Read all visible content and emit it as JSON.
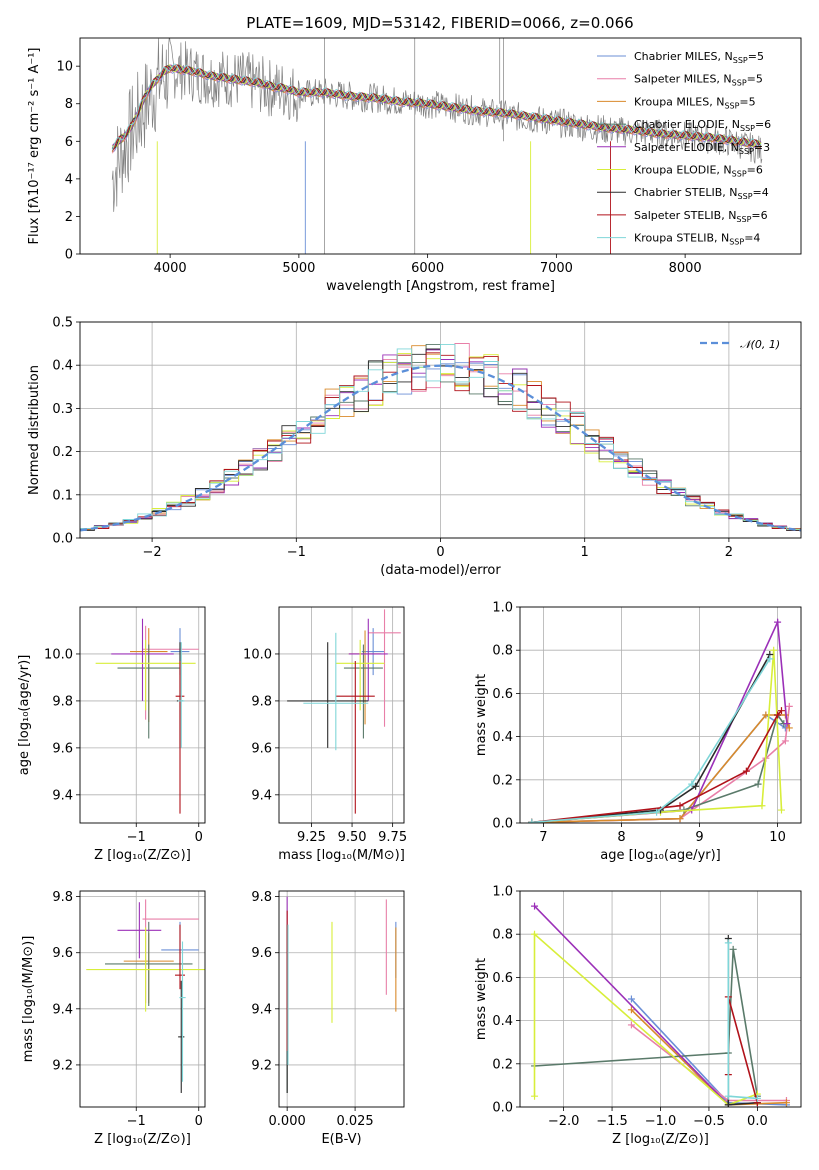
{
  "figure": {
    "title": "PLATE=1609, MJD=53142, FIBERID=0066, z=0.066"
  },
  "colors": {
    "Chabrier MILES": "#6b8fd6",
    "Salpeter MILES": "#e87fa8",
    "Kroupa MILES": "#d98a2b",
    "Chabrier ELODIE": "#5a7a6a",
    "Salpeter ELODIE": "#9b30b8",
    "Kroupa ELODIE": "#d8ee3a",
    "Chabrier STELIB": "#2b2b2b",
    "Salpeter STELIB": "#b0121a",
    "Kroupa STELIB": "#7fd6d8",
    "data": "#808080",
    "normal": "#5b8fd9",
    "grid": "#b0b0b0"
  },
  "chart_data": [
    {
      "id": "spectrum",
      "type": "line",
      "xlabel": "wavelength [Angstrom, rest frame]",
      "ylabel": "Flux [fλ10⁻¹⁷ erg cm⁻² s⁻¹ A⁻¹]",
      "xlim": [
        3300,
        8900
      ],
      "ylim": [
        0,
        11.5
      ],
      "xticks": [
        4000,
        5000,
        6000,
        7000,
        8000
      ],
      "yticks": [
        0,
        2,
        4,
        6,
        8,
        10
      ],
      "grid": false,
      "legend_position": "upper-right",
      "data_x": [
        3550,
        3600,
        3650,
        3700,
        3750,
        3800,
        3850,
        3900,
        3950,
        4000,
        4100,
        4200,
        4300,
        4400,
        4500,
        4600,
        4700,
        4800,
        4900,
        5000,
        5200,
        5400,
        5600,
        5800,
        6000,
        6200,
        6400,
        6600,
        6800,
        7000,
        7200,
        7400,
        7600,
        7800,
        8000,
        8200,
        8400,
        8600
      ],
      "data_y": [
        4.0,
        5.0,
        5.8,
        6.5,
        7.2,
        7.8,
        8.5,
        9.0,
        9.5,
        9.8,
        9.8,
        9.6,
        9.4,
        9.4,
        9.3,
        9.2,
        9.0,
        8.8,
        8.7,
        8.5,
        8.6,
        8.4,
        8.3,
        8.1,
        8.0,
        7.8,
        7.6,
        7.4,
        7.2,
        7.0,
        6.8,
        6.6,
        6.5,
        6.4,
        6.3,
        6.1,
        5.9,
        5.5
      ],
      "model_x": [
        3550,
        3600,
        3650,
        3700,
        3750,
        3800,
        3850,
        3900,
        3950,
        4000,
        4100,
        4200,
        4300,
        4400,
        4500,
        4600,
        4700,
        4800,
        4900,
        5000,
        5200,
        5400,
        5600,
        5800,
        6000,
        6200,
        6400,
        6600,
        6800,
        7000,
        7200,
        7400,
        7600,
        7800,
        8000,
        8200,
        8400,
        8600
      ],
      "model_y": [
        5.6,
        6.0,
        6.3,
        6.8,
        7.5,
        8.3,
        8.9,
        9.3,
        9.7,
        9.9,
        9.8,
        9.7,
        9.5,
        9.4,
        9.3,
        9.2,
        9.1,
        8.9,
        8.8,
        8.6,
        8.6,
        8.4,
        8.3,
        8.1,
        8.0,
        7.8,
        7.6,
        7.5,
        7.3,
        7.1,
        6.9,
        6.7,
        6.6,
        6.4,
        6.3,
        6.2,
        6.0,
        5.8
      ],
      "legend": [
        {
          "name": "Chabrier MILES, N",
          "sub": "SSP",
          "tail": "=5"
        },
        {
          "name": "Salpeter MILES, N",
          "sub": "SSP",
          "tail": "=5"
        },
        {
          "name": "Kroupa MILES, N",
          "sub": "SSP",
          "tail": "=5"
        },
        {
          "name": "Chabrier ELODIE, N",
          "sub": "SSP",
          "tail": "=6"
        },
        {
          "name": "Salpeter ELODIE, N",
          "sub": "SSP",
          "tail": "=3"
        },
        {
          "name": "Kroupa ELODIE, N",
          "sub": "SSP",
          "tail": "=6"
        },
        {
          "name": "Chabrier STELIB, N",
          "sub": "SSP",
          "tail": "=4"
        },
        {
          "name": "Salpeter STELIB, N",
          "sub": "SSP",
          "tail": "=6"
        },
        {
          "name": "Kroupa STELIB, N",
          "sub": "SSP",
          "tail": "=4"
        }
      ]
    },
    {
      "id": "residuals",
      "type": "bar",
      "xlabel": "(data-model)/error",
      "ylabel": "Normed distribution",
      "xlim": [
        -2.5,
        2.5
      ],
      "ylim": [
        0,
        0.5
      ],
      "xticks": [
        -2,
        -1,
        0,
        1,
        2
      ],
      "xtick_labels": [
        "−2",
        "−1",
        "0",
        "1",
        "2"
      ],
      "yticks": [
        0.0,
        0.1,
        0.2,
        0.3,
        0.4,
        0.5
      ],
      "ytick_labels": [
        "0.0",
        "0.1",
        "0.2",
        "0.3",
        "0.4",
        "0.5"
      ],
      "grid": true,
      "bin_width": 0.1,
      "legend": {
        "label": "𝒩(0, 1)"
      }
    },
    {
      "id": "age_vs_Z",
      "type": "scatter",
      "xlabel": "Z [log₁₀(Z/Z⊙)]",
      "ylabel": "age  [log₁₀(age/yr)]",
      "xlim": [
        -1.9,
        0.1
      ],
      "ylim": [
        9.28,
        10.2
      ],
      "xticks": [
        -1,
        0
      ],
      "xtick_labels": [
        "−1",
        "0"
      ],
      "yticks": [
        9.4,
        9.6,
        9.8,
        10.0
      ],
      "ytick_labels": [
        "9.4",
        "9.6",
        "9.8",
        "10.0"
      ],
      "grid": true,
      "points": [
        {
          "model": "Chabrier MILES",
          "x": -0.3,
          "y": 10.01,
          "xerr": 0.15,
          "yerr": [
            0.1,
            0.1
          ]
        },
        {
          "model": "Salpeter MILES",
          "x": -0.85,
          "y": 10.02,
          "xerr": [
            0.05,
            0.85
          ],
          "yerr": [
            0.3,
            0.1
          ]
        },
        {
          "model": "Kroupa MILES",
          "x": -0.8,
          "y": 10.01,
          "xerr": 0.3,
          "yerr": [
            0.3,
            0.1
          ]
        },
        {
          "model": "Chabrier ELODIE",
          "x": -0.8,
          "y": 9.94,
          "xerr": 0.5,
          "yerr": [
            0.3,
            0.1
          ]
        },
        {
          "model": "Salpeter ELODIE",
          "x": -0.9,
          "y": 10.0,
          "xerr": 0.5,
          "yerr": [
            0.2,
            0.15
          ]
        },
        {
          "model": "Kroupa ELODIE",
          "x": -0.85,
          "y": 9.96,
          "xerr": 0.8,
          "yerr": [
            0.2,
            0.1
          ]
        },
        {
          "model": "Chabrier STELIB",
          "x": -0.3,
          "y": 9.8,
          "xerr": 0.05,
          "yerr": [
            0.2,
            0.25
          ]
        },
        {
          "model": "Salpeter STELIB",
          "x": -0.3,
          "y": 9.82,
          "xerr": 0.07,
          "yerr": [
            0.5,
            0.15
          ]
        },
        {
          "model": "Kroupa STELIB",
          "x": -0.28,
          "y": 9.8,
          "xerr": 0.05,
          "yerr": [
            0.2,
            0.25
          ]
        }
      ]
    },
    {
      "id": "age_vs_mass",
      "type": "scatter",
      "xlabel": "mass [log₁₀(M/M⊙)]",
      "ylabel": "",
      "xlim": [
        9.05,
        9.82
      ],
      "ylim": [
        9.28,
        10.2
      ],
      "xticks": [
        9.25,
        9.5,
        9.75
      ],
      "xtick_labels": [
        "9.25",
        "9.50",
        "9.75"
      ],
      "yticks": [
        9.4,
        9.6,
        9.8,
        10.0
      ],
      "ytick_labels": [
        "9.4",
        "9.6",
        "9.8",
        "10.0"
      ],
      "grid": true,
      "points": [
        {
          "model": "Chabrier MILES",
          "x": 9.63,
          "y": 10.01,
          "xerr": 0.07,
          "yerr": [
            0.1,
            0.1
          ]
        },
        {
          "model": "Salpeter MILES",
          "x": 9.7,
          "y": 10.09,
          "xerr": 0.1,
          "yerr": [
            0.4,
            0.1
          ]
        },
        {
          "model": "Kroupa MILES",
          "x": 9.58,
          "y": 10.0,
          "xerr": 0.1,
          "yerr": [
            0.3,
            0.1
          ]
        },
        {
          "model": "Chabrier ELODIE",
          "x": 9.57,
          "y": 9.94,
          "xerr": 0.12,
          "yerr": [
            0.3,
            0.1
          ]
        },
        {
          "model": "Salpeter ELODIE",
          "x": 9.6,
          "y": 10.0,
          "xerr": 0.12,
          "yerr": [
            0.2,
            0.15
          ]
        },
        {
          "model": "Kroupa ELODIE",
          "x": 9.55,
          "y": 9.96,
          "xerr": 0.15,
          "yerr": [
            0.2,
            0.1
          ]
        },
        {
          "model": "Chabrier STELIB",
          "x": 9.35,
          "y": 9.8,
          "xerr": 0.25,
          "yerr": [
            0.2,
            0.25
          ]
        },
        {
          "model": "Salpeter STELIB",
          "x": 9.52,
          "y": 9.82,
          "xerr": 0.12,
          "yerr": [
            0.5,
            0.15
          ]
        },
        {
          "model": "Kroupa STELIB",
          "x": 9.4,
          "y": 9.79,
          "xerr": 0.2,
          "yerr": [
            0.2,
            0.3
          ]
        }
      ]
    },
    {
      "id": "weight_vs_age",
      "type": "line",
      "xlabel": "age  [log₁₀(age/yr)]",
      "ylabel": "mass weight",
      "xlim": [
        6.7,
        10.3
      ],
      "ylim": [
        0,
        1.0
      ],
      "xticks": [
        7,
        8,
        9,
        10
      ],
      "xtick_labels": [
        "7",
        "8",
        "9",
        "10"
      ],
      "yticks": [
        0.0,
        0.2,
        0.4,
        0.6,
        0.8,
        1.0
      ],
      "ytick_labels": [
        "0.0",
        "0.2",
        "0.4",
        "0.6",
        "0.8",
        "1.0"
      ],
      "grid": true,
      "series": [
        {
          "model": "Chabrier MILES",
          "x": [
            6.85,
            8.75,
            9.85,
            10.1
          ],
          "y": [
            0.003,
            0.02,
            0.5,
            0.44
          ]
        },
        {
          "model": "Salpeter MILES",
          "x": [
            6.85,
            8.75,
            9.85,
            10.1,
            10.15
          ],
          "y": [
            0.003,
            0.02,
            0.3,
            0.38,
            0.54
          ]
        },
        {
          "model": "Kroupa MILES",
          "x": [
            6.85,
            8.75,
            9.85,
            10.1,
            10.15
          ],
          "y": [
            0.003,
            0.02,
            0.5,
            0.5,
            0.44
          ]
        },
        {
          "model": "Chabrier ELODIE",
          "x": [
            6.85,
            8.8,
            9.75,
            10.0,
            10.08
          ],
          "y": [
            0.003,
            0.06,
            0.18,
            0.5,
            0.46
          ]
        },
        {
          "model": "Salpeter ELODIE",
          "x": [
            6.85,
            8.9,
            10.0,
            10.12
          ],
          "y": [
            0.003,
            0.06,
            0.93,
            0.46
          ]
        },
        {
          "model": "Kroupa ELODIE",
          "x": [
            6.85,
            8.5,
            9.8,
            9.95,
            10.05
          ],
          "y": [
            0.003,
            0.05,
            0.08,
            0.8,
            0.06
          ]
        },
        {
          "model": "Chabrier STELIB",
          "x": [
            6.85,
            8.5,
            8.95,
            9.9
          ],
          "y": [
            0.003,
            0.06,
            0.17,
            0.78
          ]
        },
        {
          "model": "Salpeter STELIB",
          "x": [
            6.85,
            8.75,
            9.6,
            10.0,
            10.05
          ],
          "y": [
            0.003,
            0.08,
            0.24,
            0.5,
            0.52
          ]
        },
        {
          "model": "Kroupa STELIB",
          "x": [
            6.85,
            8.45,
            8.9,
            9.9
          ],
          "y": [
            0.003,
            0.05,
            0.18,
            0.76
          ]
        }
      ]
    },
    {
      "id": "mass_vs_Z",
      "type": "scatter",
      "xlabel": "Z [log₁₀(Z/Z⊙)]",
      "ylabel": "mass [log₁₀(M/M⊙)]",
      "xlim": [
        -1.9,
        0.1
      ],
      "ylim": [
        9.05,
        9.82
      ],
      "xticks": [
        -1,
        0
      ],
      "xtick_labels": [
        "−1",
        "0"
      ],
      "yticks": [
        9.2,
        9.4,
        9.6,
        9.8
      ],
      "ytick_labels": [
        "9.2",
        "9.4",
        "9.6",
        "9.8"
      ],
      "grid": true,
      "points": [
        {
          "model": "Chabrier MILES",
          "x": -0.3,
          "y": 9.61,
          "xerr": 0.3,
          "yerr": 0.1
        },
        {
          "model": "Salpeter MILES",
          "x": -0.85,
          "y": 9.72,
          "xerr": [
            0.05,
            0.85
          ],
          "yerr": [
            0.3,
            0.07
          ]
        },
        {
          "model": "Kroupa MILES",
          "x": -0.8,
          "y": 9.57,
          "xerr": 0.4,
          "yerr": [
            0.15,
            0.1
          ]
        },
        {
          "model": "Chabrier ELODIE",
          "x": -0.8,
          "y": 9.56,
          "xerr": 0.7,
          "yerr": 0.15
        },
        {
          "model": "Salpeter ELODIE",
          "x": -0.95,
          "y": 9.68,
          "xerr": 0.35,
          "yerr": 0.1
        },
        {
          "model": "Kroupa ELODIE",
          "x": -0.85,
          "y": 9.54,
          "xerr": 0.95,
          "yerr": 0.15
        },
        {
          "model": "Chabrier STELIB",
          "x": -0.28,
          "y": 9.3,
          "xerr": 0.05,
          "yerr": 0.2
        },
        {
          "model": "Salpeter STELIB",
          "x": -0.3,
          "y": 9.52,
          "xerr": 0.08,
          "yerr": [
            0.05,
            0.18
          ]
        },
        {
          "model": "Kroupa STELIB",
          "x": -0.26,
          "y": 9.44,
          "xerr": 0.05,
          "yerr": [
            0.3,
            0.2
          ]
        }
      ]
    },
    {
      "id": "mass_vs_ebv",
      "type": "scatter",
      "xlabel": "E(B-V)",
      "ylabel": "",
      "xlim": [
        -0.003,
        0.043
      ],
      "ylim": [
        9.05,
        9.82
      ],
      "xticks": [
        0.0,
        0.025
      ],
      "xtick_labels": [
        "0.000",
        "0.025"
      ],
      "yticks": [
        9.2,
        9.4,
        9.6,
        9.8
      ],
      "ytick_labels": [
        "9.2",
        "9.4",
        "9.6",
        "9.8"
      ],
      "grid": true,
      "points": [
        {
          "model": "Chabrier MILES",
          "x": 0.04,
          "y": 9.61,
          "xerr": 0,
          "yerr": 0.1
        },
        {
          "model": "Salpeter MILES",
          "x": 0.0365,
          "y": 9.62,
          "xerr": 0,
          "yerr": 0.17
        },
        {
          "model": "Kroupa MILES",
          "x": 0.04,
          "y": 9.54,
          "xerr": 0,
          "yerr": 0.15
        },
        {
          "model": "Chabrier ELODIE",
          "x": 0.0,
          "y": 9.3,
          "xerr": 0,
          "yerr": 0.2
        },
        {
          "model": "Salpeter ELODIE",
          "x": 0.0,
          "y": 9.6,
          "xerr": 0,
          "yerr": 0.2
        },
        {
          "model": "Kroupa ELODIE",
          "x": 0.0165,
          "y": 9.53,
          "xerr": 0,
          "yerr": 0.18
        },
        {
          "model": "Chabrier STELIB",
          "x": 0.0,
          "y": 9.4,
          "xerr": 0,
          "yerr": 0.3
        },
        {
          "model": "Salpeter STELIB",
          "x": 0.0,
          "y": 9.5,
          "xerr": 0,
          "yerr": 0.25
        },
        {
          "model": "Kroupa STELIB",
          "x": 0.0003,
          "y": 9.45,
          "xerr": 0,
          "yerr": 0.25
        }
      ]
    },
    {
      "id": "weight_vs_Z",
      "type": "line",
      "xlabel": "Z [log₁₀(Z/Z⊙)]",
      "ylabel": "mass weight",
      "xlim": [
        -2.45,
        0.45
      ],
      "ylim": [
        0,
        1.0
      ],
      "xticks": [
        -2.0,
        -1.5,
        -1.0,
        -0.5,
        0.0
      ],
      "xtick_labels": [
        "−2.0",
        "−1.5",
        "−1.0",
        "−0.5",
        "0.0"
      ],
      "yticks": [
        0.0,
        0.2,
        0.4,
        0.6,
        0.8,
        1.0
      ],
      "ytick_labels": [
        "0.0",
        "0.2",
        "0.4",
        "0.6",
        "0.8",
        "1.0"
      ],
      "grid": true,
      "series": [
        {
          "model": "Chabrier MILES",
          "x": [
            -1.3,
            -0.3,
            0.3
          ],
          "y": [
            0.5,
            0.02,
            0.01
          ]
        },
        {
          "model": "Salpeter MILES",
          "x": [
            -1.3,
            -0.3,
            0.3
          ],
          "y": [
            0.38,
            0.03,
            0.03
          ]
        },
        {
          "model": "Kroupa MILES",
          "x": [
            -1.3,
            -0.3,
            0.3
          ],
          "y": [
            0.45,
            0.01,
            0.02
          ]
        },
        {
          "model": "Chabrier ELODIE",
          "x": [
            -2.3,
            -0.3,
            -0.25,
            0.0
          ],
          "y": [
            0.19,
            0.25,
            0.73,
            0.05
          ]
        },
        {
          "model": "Salpeter ELODIE",
          "x": [
            -2.3,
            -0.3
          ],
          "y": [
            0.93,
            0.01
          ]
        },
        {
          "model": "Kroupa ELODIE",
          "x": [
            -2.3,
            -2.3,
            -0.3,
            0.0
          ],
          "y": [
            0.05,
            0.8,
            0.01,
            0.06
          ]
        },
        {
          "model": "Chabrier STELIB",
          "x": [
            -0.3,
            -0.3,
            0.0
          ],
          "y": [
            0.78,
            0.01,
            0.02
          ]
        },
        {
          "model": "Salpeter STELIB",
          "x": [
            -0.3,
            -0.3,
            0.0
          ],
          "y": [
            0.15,
            0.51,
            0.02
          ]
        },
        {
          "model": "Kroupa STELIB",
          "x": [
            -0.3,
            -0.3,
            0.0
          ],
          "y": [
            0.76,
            0.05,
            0.04
          ]
        }
      ]
    }
  ]
}
